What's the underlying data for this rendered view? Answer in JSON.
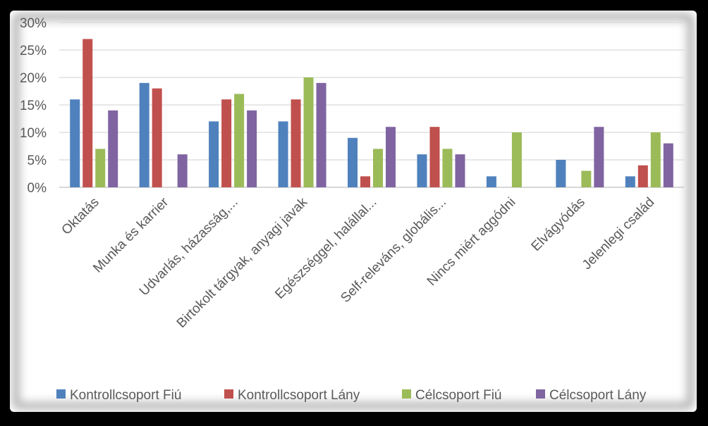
{
  "chart_data": {
    "type": "bar",
    "categories": [
      "Oktatás",
      "Munka és karrier",
      "Udvarlás, házasság,...",
      "Birtokolt tárgyak, anyagi javak",
      "Egészséggel, halállal...",
      "Self-releváns, globális...",
      "Nincs miért aggódni",
      "Elvágyódás",
      "Jelenlegi család"
    ],
    "series": [
      {
        "name": "Kontrollcsoport Fiú",
        "color": "#4F81BD",
        "values": [
          16,
          19,
          12,
          12,
          9,
          6,
          2,
          5,
          2
        ]
      },
      {
        "name": "Kontrollcsoport Lány",
        "color": "#C0504D",
        "values": [
          27,
          18,
          16,
          16,
          2,
          11,
          0,
          0,
          4
        ]
      },
      {
        "name": "Célcsoport Fiú",
        "color": "#9BBB59",
        "values": [
          7,
          0,
          17,
          20,
          7,
          7,
          10,
          3,
          10
        ]
      },
      {
        "name": "Célcsoport Lány",
        "color": "#8064A2",
        "values": [
          14,
          6,
          14,
          19,
          11,
          6,
          0,
          11,
          8
        ]
      }
    ],
    "y_ticks": [
      "0%",
      "5%",
      "10%",
      "15%",
      "20%",
      "25%",
      "30%"
    ],
    "ylim": [
      0,
      30
    ],
    "y_unit": "%",
    "grid": true,
    "legend_position": "bottom",
    "title": "",
    "xlabel": "",
    "ylabel": ""
  }
}
